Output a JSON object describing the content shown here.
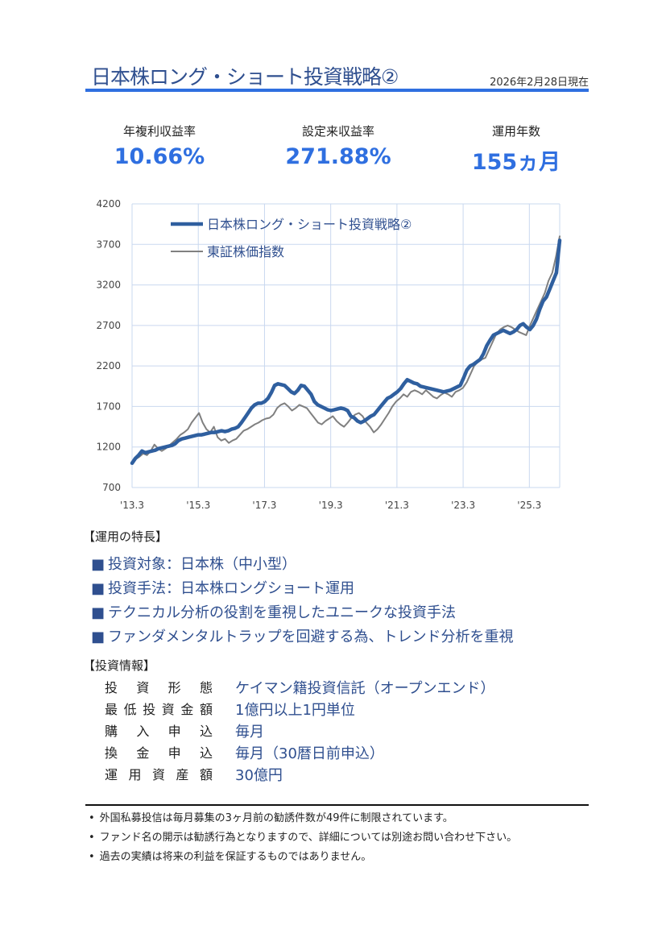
{
  "header": {
    "title": "日本株ロング・ショート投資戦略②",
    "as_of": "2026年2月28日現在"
  },
  "kpis": [
    {
      "label": "年複利収益率",
      "value": "10.66%"
    },
    {
      "label": "設定来収益率",
      "value": "271.88%"
    },
    {
      "label": "運用年数",
      "value": "155ヵ月"
    }
  ],
  "colors": {
    "accent": "#2f6fe0",
    "navy": "#2f4f8f",
    "fund_line": "#2f5f9f",
    "index_line": "#808080",
    "grid": "#c9d8ef"
  },
  "chart_data": {
    "type": "line",
    "ylim": [
      700,
      4200
    ],
    "yticks": [
      700,
      1200,
      1700,
      2200,
      2700,
      3200,
      3700,
      4200
    ],
    "x_tick_labels": [
      "'13.3",
      "'15.3",
      "'17.3",
      "'19.3",
      "'21.3",
      "'23.3",
      "'25.3"
    ],
    "x_range_months": [
      0,
      155
    ],
    "legend_position": "top-left",
    "series": [
      {
        "name": "日本株ロング・ショート投資戦略②",
        "color": "#2f5f9f",
        "values": [
          1000,
          1060,
          1100,
          1150,
          1130,
          1140,
          1150,
          1160,
          1180,
          1190,
          1200,
          1210,
          1220,
          1240,
          1280,
          1300,
          1310,
          1320,
          1330,
          1340,
          1350,
          1350,
          1360,
          1370,
          1380,
          1380,
          1390,
          1400,
          1390,
          1400,
          1420,
          1430,
          1450,
          1500,
          1560,
          1620,
          1680,
          1720,
          1740,
          1740,
          1760,
          1800,
          1870,
          1960,
          1980,
          1970,
          1960,
          1920,
          1880,
          1860,
          1900,
          1960,
          1950,
          1900,
          1850,
          1760,
          1720,
          1700,
          1680,
          1660,
          1650,
          1660,
          1670,
          1680,
          1670,
          1650,
          1580,
          1560,
          1520,
          1500,
          1520,
          1550,
          1580,
          1600,
          1650,
          1700,
          1750,
          1800,
          1820,
          1850,
          1880,
          1920,
          1980,
          2030,
          2010,
          1990,
          1980,
          1950,
          1940,
          1930,
          1920,
          1910,
          1900,
          1890,
          1880,
          1890,
          1900,
          1920,
          1940,
          1960,
          2050,
          2150,
          2200,
          2220,
          2250,
          2280,
          2350,
          2450,
          2520,
          2580,
          2600,
          2620,
          2640,
          2620,
          2600,
          2620,
          2650,
          2700,
          2720,
          2680,
          2650,
          2700,
          2780,
          2900,
          3000,
          3050,
          3150,
          3250,
          3350,
          3750
        ]
      },
      {
        "name": "東証株価指数",
        "color": "#808080",
        "values": [
          1000,
          1050,
          1080,
          1120,
          1100,
          1150,
          1230,
          1180,
          1150,
          1180,
          1220,
          1260,
          1300,
          1350,
          1380,
          1420,
          1500,
          1560,
          1620,
          1500,
          1420,
          1380,
          1450,
          1320,
          1280,
          1300,
          1250,
          1280,
          1300,
          1350,
          1400,
          1420,
          1450,
          1480,
          1500,
          1530,
          1550,
          1560,
          1600,
          1680,
          1720,
          1740,
          1700,
          1650,
          1680,
          1720,
          1700,
          1680,
          1620,
          1560,
          1500,
          1480,
          1520,
          1550,
          1580,
          1520,
          1480,
          1450,
          1500,
          1560,
          1600,
          1620,
          1580,
          1500,
          1450,
          1380,
          1420,
          1480,
          1550,
          1620,
          1700,
          1760,
          1800,
          1850,
          1820,
          1880,
          1900,
          1880,
          1850,
          1900,
          1860,
          1820,
          1800,
          1840,
          1870,
          1850,
          1820,
          1880,
          1900,
          1930,
          2000,
          2100,
          2200,
          2250,
          2280,
          2300,
          2400,
          2500,
          2600,
          2650,
          2680,
          2700,
          2680,
          2650,
          2620,
          2600,
          2580,
          2700,
          2800,
          2900,
          3000,
          3100,
          3250,
          3350,
          3550,
          3800
        ]
      }
    ]
  },
  "features": {
    "heading": "【運用の特長】",
    "bullet": "■",
    "items": [
      "投資対象：日本株（中小型）",
      "投資手法：日本株ロングショート運用",
      "テクニカル分析の役割を重視したユニークな投資手法",
      "ファンダメンタルトラップを回避する為、トレンド分析を重視"
    ]
  },
  "info": {
    "heading": "【投資情報】",
    "rows": [
      {
        "key": "投資形態",
        "value": "ケイマン籍投資信託（オープンエンド）"
      },
      {
        "key": "最低投資金額",
        "value": "1億円以上1円単位"
      },
      {
        "key": "購入申込",
        "value": "毎月"
      },
      {
        "key": "換金申込",
        "value": "毎月（30暦日前申込）"
      },
      {
        "key": "運用資産額",
        "value": "30億円"
      }
    ]
  },
  "notes": {
    "bullet": "•",
    "items": [
      "外国私募投信は毎月募集の3ヶ月前の勧誘件数が49件に制限されています。",
      "ファンド名の開示は勧誘行為となりますので、詳細については別途お問い合わせ下さい。",
      "過去の実績は将来の利益を保証するものではありません。"
    ]
  }
}
